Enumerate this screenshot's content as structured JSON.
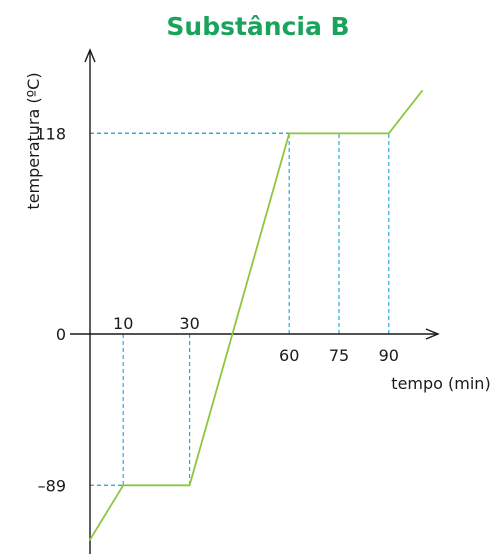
{
  "chart_data": {
    "type": "line",
    "title": "Substância B",
    "xlabel": "tempo (min)",
    "ylabel": "temperatura (ºC)",
    "x_ticks": [
      {
        "value": 10,
        "label": "10",
        "side": "above"
      },
      {
        "value": 30,
        "label": "30",
        "side": "above"
      },
      {
        "value": 60,
        "label": "60",
        "side": "below"
      },
      {
        "value": 75,
        "label": "75",
        "side": "below"
      },
      {
        "value": 90,
        "label": "90",
        "side": "below"
      }
    ],
    "y_ticks": [
      {
        "value": 118,
        "label": "118"
      },
      {
        "value": 0,
        "label": "0"
      },
      {
        "value": -89,
        "label": "–89"
      }
    ],
    "guides": [
      {
        "x": 10,
        "y": -89
      },
      {
        "x": 30,
        "y": -89
      },
      {
        "x": 60,
        "y": 118
      },
      {
        "x": 75,
        "y": 118
      },
      {
        "x": 90,
        "y": 118
      }
    ],
    "series": [
      {
        "x": [
          0,
          10,
          30,
          60,
          90,
          100
        ],
        "y": [
          -121,
          -89,
          -89,
          118,
          118,
          143
        ]
      }
    ],
    "xlim": [
      0,
      103
    ],
    "ylim": [
      -129,
      170
    ],
    "grid": false,
    "legend": "none"
  },
  "colors": {
    "title": "#1aa35a",
    "curve": "#8dc63f",
    "guide": "#29a8df",
    "axis": "#1a1a1a"
  }
}
